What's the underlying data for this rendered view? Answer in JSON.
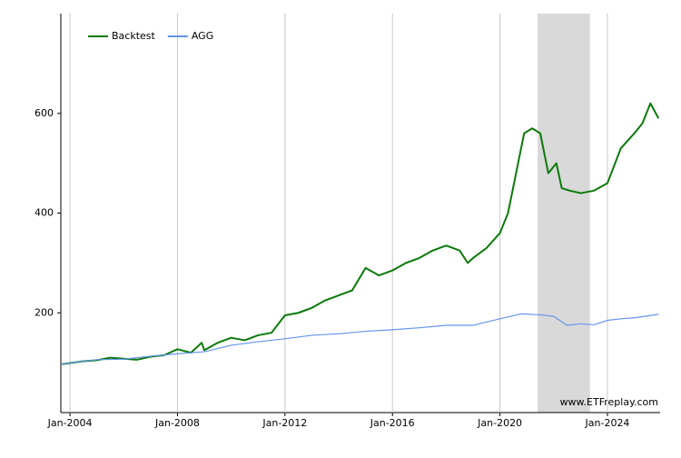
{
  "chart_data": {
    "type": "line",
    "xlim": [
      2003.66,
      2025.96
    ],
    "ylim": [
      0,
      800
    ],
    "xticks": [
      {
        "value": 2004,
        "label": "Jan-2004"
      },
      {
        "value": 2008,
        "label": "Jan-2008"
      },
      {
        "value": 2012,
        "label": "Jan-2012"
      },
      {
        "value": 2016,
        "label": "Jan-2016"
      },
      {
        "value": 2020,
        "label": "Jan-2020"
      },
      {
        "value": 2024,
        "label": "Jan-2024"
      }
    ],
    "yticks": [
      200,
      400,
      600
    ],
    "grid": true,
    "legend": "top-left",
    "shaded_range": [
      2021.4,
      2023.35
    ],
    "watermark": "www.ETFreplay.com",
    "series": [
      {
        "name": "Backtest",
        "color": "#0a7a0a",
        "x": [
          2003.7,
          2004.5,
          2005,
          2005.5,
          2006,
          2006.5,
          2007,
          2007.5,
          2008,
          2008.5,
          2008.9,
          2009,
          2009.5,
          2010,
          2010.5,
          2011,
          2011.5,
          2012,
          2012.5,
          2013,
          2013.5,
          2014,
          2014.5,
          2015,
          2015.5,
          2016,
          2016.5,
          2017,
          2017.5,
          2018,
          2018.5,
          2018.8,
          2019,
          2019.5,
          2020,
          2020.3,
          2020.6,
          2020.9,
          2021.2,
          2021.5,
          2021.8,
          2022.1,
          2022.3,
          2022.6,
          2023,
          2023.5,
          2024,
          2024.5,
          2025,
          2025.3,
          2025.6,
          2025.9
        ],
        "values": [
          97,
          103,
          105,
          110,
          108,
          106,
          112,
          115,
          127,
          120,
          140,
          125,
          140,
          150,
          145,
          155,
          160,
          195,
          200,
          210,
          225,
          235,
          245,
          290,
          275,
          285,
          300,
          310,
          325,
          335,
          325,
          300,
          310,
          330,
          360,
          400,
          480,
          560,
          570,
          560,
          480,
          500,
          450,
          445,
          440,
          445,
          460,
          530,
          560,
          580,
          620,
          590
        ]
      },
      {
        "name": "AGG",
        "color": "#6495ed",
        "x": [
          2003.7,
          2004.5,
          2005,
          2006,
          2007,
          2008,
          2009,
          2010,
          2011,
          2012,
          2013,
          2014,
          2015,
          2016,
          2017,
          2018,
          2019,
          2020,
          2020.8,
          2021.5,
          2022,
          2022.5,
          2023,
          2023.5,
          2024,
          2024.5,
          2025,
          2025.9
        ],
        "values": [
          97,
          103,
          106,
          107,
          113,
          118,
          122,
          135,
          142,
          148,
          155,
          158,
          163,
          166,
          170,
          175,
          175,
          188,
          198,
          196,
          193,
          175,
          178,
          176,
          185,
          188,
          190,
          197
        ]
      }
    ]
  }
}
